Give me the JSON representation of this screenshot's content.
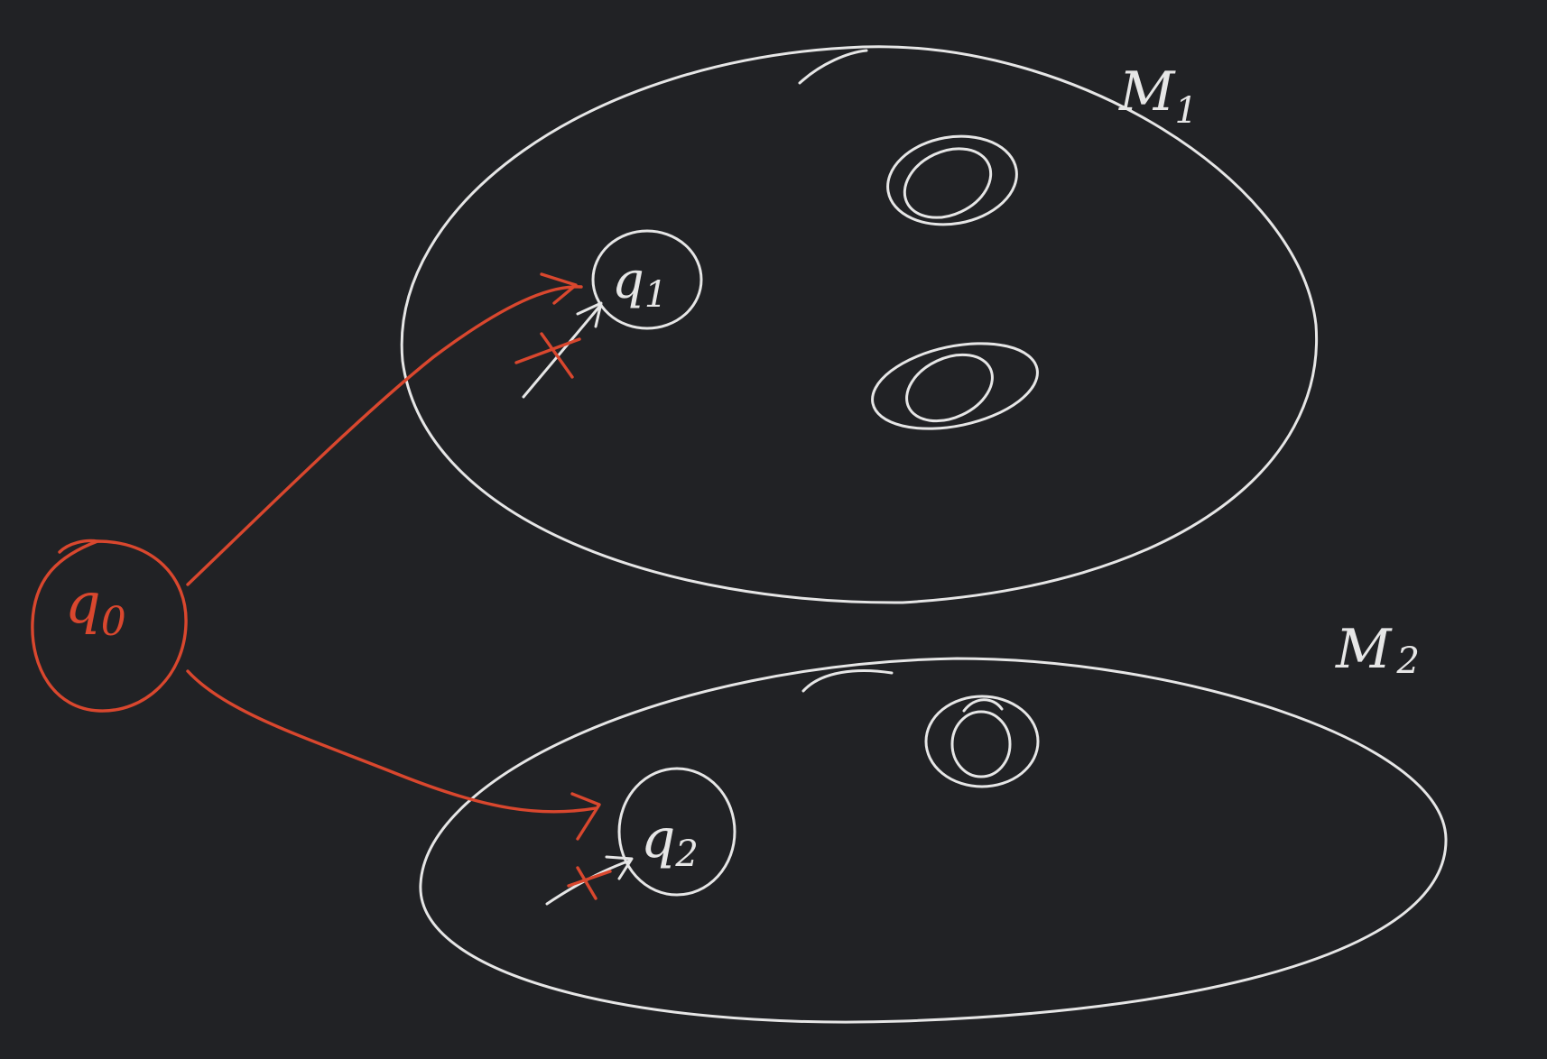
{
  "colors": {
    "background": "#212225",
    "chalk": "#e6e6e6",
    "accent": "#d9472e"
  },
  "machines": [
    {
      "name_main": "M",
      "name_sub": "1"
    },
    {
      "name_main": "M",
      "name_sub": "2"
    }
  ],
  "states": {
    "q0": {
      "main": "q",
      "sub": "0"
    },
    "q1": {
      "main": "q",
      "sub": "1"
    },
    "q2": {
      "main": "q",
      "sub": "2"
    }
  }
}
